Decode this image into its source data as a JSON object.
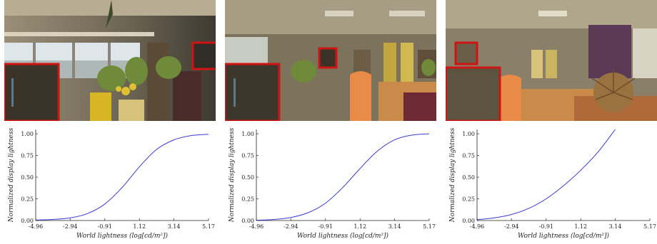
{
  "panels": [
    {
      "photo": "flower shop interior with windows, plants and red inset zoom",
      "chart_data": {
        "type": "line",
        "xlabel": "World lightness (log[cd/m²])",
        "ylabel": "Normalized display lightness",
        "xticks": [
          "-4.96",
          "-2.94",
          "-0.91",
          "1.12",
          "3.14",
          "5.17"
        ],
        "yticks": [
          "0.00",
          "0.25",
          "0.50",
          "0.75",
          "1.00"
        ],
        "xlim": [
          -4.96,
          5.17
        ],
        "ylim": [
          0,
          1.05
        ],
        "grid": false,
        "series": [
          {
            "color": "#3a3ad6",
            "x": [
              -4.96,
              -3.95,
              -2.94,
              -1.93,
              -0.91,
              0.1,
              1.12,
              2.13,
              3.14,
              4.16,
              5.17
            ],
            "y": [
              0.005,
              0.012,
              0.03,
              0.08,
              0.19,
              0.38,
              0.62,
              0.82,
              0.93,
              0.98,
              0.995
            ]
          }
        ]
      }
    },
    {
      "photo": "flower shop interior with vases, orange urn and red inset zoom",
      "chart_data": {
        "type": "line",
        "xlabel": "World lightness (log[cd/m²])",
        "ylabel": "Normalized display lightness",
        "xticks": [
          "-4.96",
          "-2.94",
          "-0.91",
          "1.12",
          "3.14",
          "5.17"
        ],
        "yticks": [
          "0.00",
          "0.25",
          "0.50",
          "0.75",
          "1.00"
        ],
        "xlim": [
          -4.96,
          5.17
        ],
        "ylim": [
          0,
          1.05
        ],
        "grid": false,
        "series": [
          {
            "color": "#3a3ad6",
            "x": [
              -4.96,
              -3.95,
              -2.94,
              -1.93,
              -0.91,
              0.1,
              1.12,
              2.13,
              3.14,
              4.16,
              5.17
            ],
            "y": [
              0.004,
              0.012,
              0.035,
              0.09,
              0.2,
              0.38,
              0.6,
              0.8,
              0.93,
              0.985,
              1.0
            ]
          }
        ]
      }
    },
    {
      "photo": "flower shop interior with purple curtain, spiky plant and red inset zoom",
      "chart_data": {
        "type": "line",
        "xlabel": "World lightness (log[cd/m²])",
        "ylabel": "Normalized display lightness",
        "xticks": [
          "-4.96",
          "-2.94",
          "-0.91",
          "1.12",
          "3.14",
          "5.17"
        ],
        "yticks": [
          "0.00",
          "0.25",
          "0.50",
          "0.75",
          "1.00"
        ],
        "xlim": [
          -4.96,
          5.17
        ],
        "ylim": [
          0,
          1.05
        ],
        "grid": false,
        "series": [
          {
            "color": "#3a3ad6",
            "x": [
              -4.96,
              -3.95,
              -2.94,
              -1.93,
              -0.91,
              0.1,
              1.12,
              2.13,
              3.14
            ],
            "y": [
              0.01,
              0.03,
              0.07,
              0.14,
              0.25,
              0.4,
              0.58,
              0.79,
              1.05
            ]
          }
        ]
      }
    }
  ],
  "colors": {
    "curve": "#3a3ad6",
    "inset_border": "#d01414",
    "axis": "#222222"
  }
}
